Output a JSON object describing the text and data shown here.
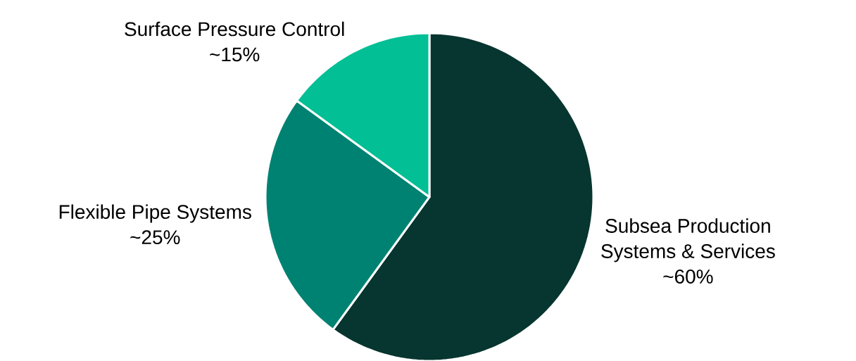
{
  "chart_data": {
    "type": "pie",
    "categories": [
      "Subsea Production Systems & Services",
      "Flexible Pipe Systems",
      "Surface Pressure Control"
    ],
    "values": [
      60,
      25,
      15
    ],
    "value_labels": [
      "~60%",
      "~25%",
      "~15%"
    ],
    "colors": [
      "#07352f",
      "#008272",
      "#03bf95"
    ]
  }
}
